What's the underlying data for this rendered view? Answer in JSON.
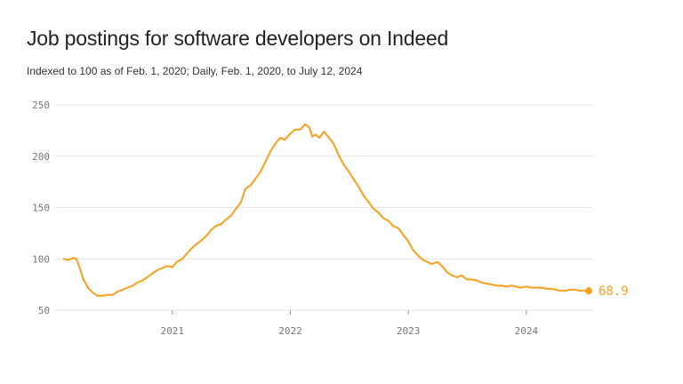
{
  "title": "Job postings for software developers on Indeed",
  "subtitle": "Indexed to 100 as of Feb. 1, 2020; Daily, Feb. 1, 2020, to July 12, 2024",
  "colors": {
    "line": "#f5a11f",
    "grid": "#e3e3e3",
    "tick": "#777777"
  },
  "chart_data": {
    "type": "line",
    "title": "Job postings for software developers on Indeed",
    "xlabel": "",
    "ylabel": "",
    "ylim": [
      50,
      250
    ],
    "xlim": [
      "2020-02-01",
      "2024-07-12"
    ],
    "y_ticks": [
      "50",
      "100",
      "150",
      "200",
      "250"
    ],
    "x_ticks": [
      {
        "label": "2021",
        "date": "2021-01-01"
      },
      {
        "label": "2022",
        "date": "2022-01-01"
      },
      {
        "label": "2023",
        "date": "2023-01-01"
      },
      {
        "label": "2024",
        "date": "2024-01-01"
      }
    ],
    "grid": true,
    "end_label": "68.9",
    "series": [
      {
        "points": [
          [
            "2020-02-01",
            100
          ],
          [
            "2020-02-15",
            99
          ],
          [
            "2020-03-01",
            101
          ],
          [
            "2020-03-10",
            100
          ],
          [
            "2020-03-20",
            92
          ],
          [
            "2020-04-01",
            80
          ],
          [
            "2020-04-15",
            72
          ],
          [
            "2020-05-01",
            67
          ],
          [
            "2020-05-15",
            64
          ],
          [
            "2020-06-01",
            64
          ],
          [
            "2020-06-15",
            65
          ],
          [
            "2020-07-01",
            65
          ],
          [
            "2020-07-15",
            68
          ],
          [
            "2020-08-01",
            70
          ],
          [
            "2020-08-15",
            72
          ],
          [
            "2020-09-01",
            74
          ],
          [
            "2020-09-15",
            77
          ],
          [
            "2020-10-01",
            79
          ],
          [
            "2020-10-15",
            82
          ],
          [
            "2020-11-01",
            86
          ],
          [
            "2020-11-15",
            89
          ],
          [
            "2020-12-01",
            91
          ],
          [
            "2020-12-15",
            93
          ],
          [
            "2021-01-01",
            92
          ],
          [
            "2021-01-15",
            97
          ],
          [
            "2021-02-01",
            100
          ],
          [
            "2021-02-15",
            105
          ],
          [
            "2021-03-01",
            110
          ],
          [
            "2021-03-15",
            114
          ],
          [
            "2021-04-01",
            118
          ],
          [
            "2021-04-15",
            122
          ],
          [
            "2021-05-01",
            128
          ],
          [
            "2021-05-15",
            132
          ],
          [
            "2021-06-01",
            134
          ],
          [
            "2021-06-15",
            138
          ],
          [
            "2021-07-01",
            142
          ],
          [
            "2021-07-15",
            148
          ],
          [
            "2021-08-01",
            155
          ],
          [
            "2021-08-15",
            168
          ],
          [
            "2021-09-01",
            172
          ],
          [
            "2021-09-15",
            178
          ],
          [
            "2021-10-01",
            185
          ],
          [
            "2021-10-15",
            194
          ],
          [
            "2021-11-01",
            205
          ],
          [
            "2021-11-15",
            212
          ],
          [
            "2021-12-01",
            218
          ],
          [
            "2021-12-15",
            216
          ],
          [
            "2022-01-01",
            222
          ],
          [
            "2022-01-15",
            226
          ],
          [
            "2022-02-01",
            226
          ],
          [
            "2022-02-15",
            231
          ],
          [
            "2022-03-01",
            228
          ],
          [
            "2022-03-10",
            219
          ],
          [
            "2022-03-20",
            221
          ],
          [
            "2022-04-01",
            218
          ],
          [
            "2022-04-15",
            224
          ],
          [
            "2022-05-01",
            218
          ],
          [
            "2022-05-15",
            212
          ],
          [
            "2022-06-01",
            200
          ],
          [
            "2022-06-15",
            192
          ],
          [
            "2022-07-01",
            185
          ],
          [
            "2022-07-15",
            178
          ],
          [
            "2022-08-01",
            170
          ],
          [
            "2022-08-15",
            162
          ],
          [
            "2022-09-01",
            155
          ],
          [
            "2022-09-15",
            149
          ],
          [
            "2022-10-01",
            145
          ],
          [
            "2022-10-15",
            140
          ],
          [
            "2022-11-01",
            137
          ],
          [
            "2022-11-15",
            132
          ],
          [
            "2022-12-01",
            130
          ],
          [
            "2022-12-15",
            124
          ],
          [
            "2023-01-01",
            117
          ],
          [
            "2023-01-15",
            109
          ],
          [
            "2023-02-01",
            103
          ],
          [
            "2023-02-15",
            99
          ],
          [
            "2023-03-01",
            97
          ],
          [
            "2023-03-15",
            95
          ],
          [
            "2023-04-01",
            97
          ],
          [
            "2023-04-15",
            93
          ],
          [
            "2023-05-01",
            87
          ],
          [
            "2023-05-15",
            84
          ],
          [
            "2023-06-01",
            82
          ],
          [
            "2023-06-15",
            84
          ],
          [
            "2023-07-01",
            80
          ],
          [
            "2023-07-15",
            80
          ],
          [
            "2023-08-01",
            79
          ],
          [
            "2023-08-15",
            77
          ],
          [
            "2023-09-01",
            76
          ],
          [
            "2023-09-15",
            75
          ],
          [
            "2023-10-01",
            74
          ],
          [
            "2023-10-15",
            74
          ],
          [
            "2023-11-01",
            73
          ],
          [
            "2023-11-15",
            74
          ],
          [
            "2023-12-01",
            73
          ],
          [
            "2023-12-15",
            72
          ],
          [
            "2024-01-01",
            73
          ],
          [
            "2024-01-15",
            72
          ],
          [
            "2024-02-01",
            72
          ],
          [
            "2024-02-15",
            72
          ],
          [
            "2024-03-01",
            71
          ],
          [
            "2024-03-15",
            71
          ],
          [
            "2024-04-01",
            70
          ],
          [
            "2024-04-15",
            69
          ],
          [
            "2024-05-01",
            69
          ],
          [
            "2024-05-15",
            70
          ],
          [
            "2024-06-01",
            70
          ],
          [
            "2024-06-15",
            69
          ],
          [
            "2024-07-01",
            69
          ],
          [
            "2024-07-12",
            68.9
          ]
        ]
      }
    ]
  }
}
